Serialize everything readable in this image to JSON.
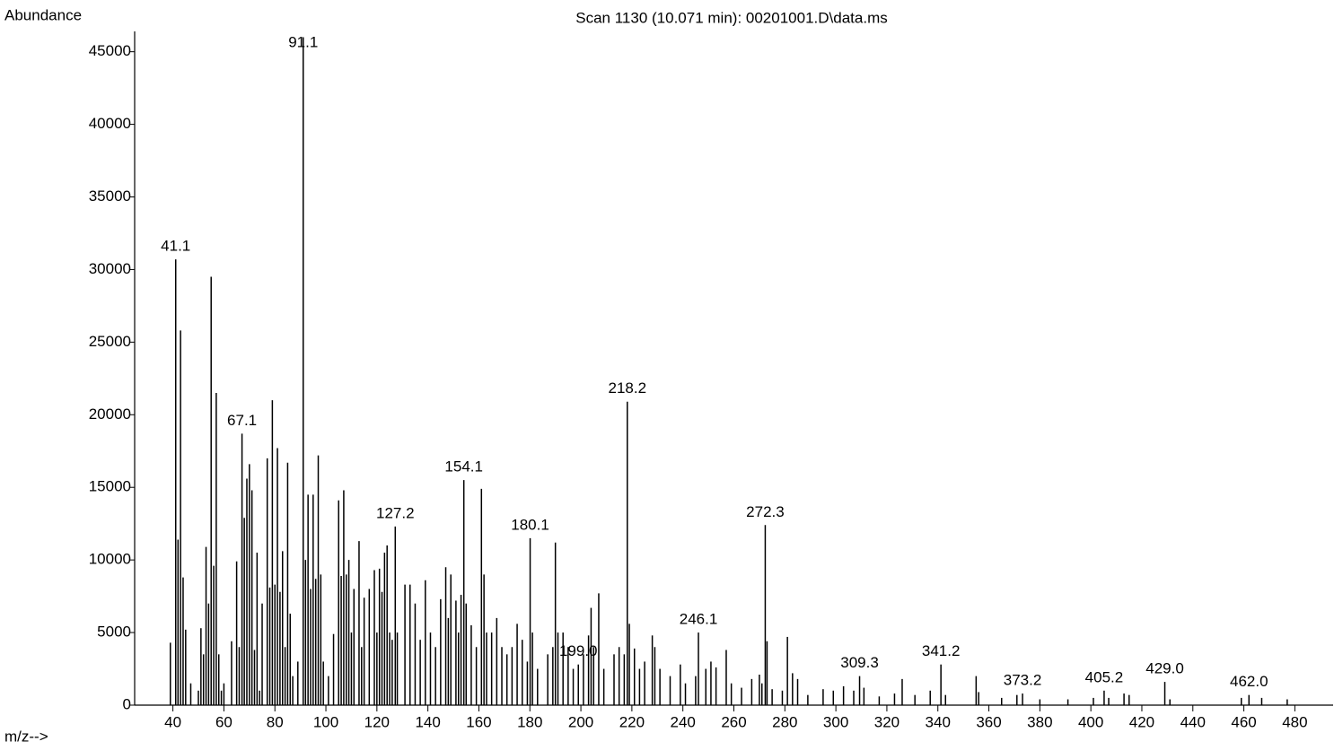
{
  "chart_data": {
    "type": "spectrum",
    "title": "Scan 1130 (10.071 min): 00201001.D\\data.ms",
    "y_label": "Abundance",
    "x_label": "m/z-->",
    "color": "#000000",
    "xlim": [
      25,
      495
    ],
    "ylim": [
      0,
      46400
    ],
    "xticks": [
      40,
      60,
      80,
      100,
      120,
      140,
      160,
      180,
      200,
      220,
      240,
      260,
      280,
      300,
      320,
      340,
      360,
      380,
      400,
      420,
      440,
      460,
      480
    ],
    "yticks": [
      0,
      5000,
      10000,
      15000,
      20000,
      25000,
      30000,
      35000,
      40000,
      45000
    ],
    "peaks": [
      {
        "x": 39,
        "value": 4300
      },
      {
        "x": 41.1,
        "value": 30700,
        "label": "41.1"
      },
      {
        "x": 42,
        "value": 11400
      },
      {
        "x": 43,
        "value": 25800
      },
      {
        "x": 44,
        "value": 8800
      },
      {
        "x": 45,
        "value": 5200
      },
      {
        "x": 47,
        "value": 1500
      },
      {
        "x": 50,
        "value": 1000
      },
      {
        "x": 51,
        "value": 5300
      },
      {
        "x": 52,
        "value": 3500
      },
      {
        "x": 53,
        "value": 10900
      },
      {
        "x": 54,
        "value": 7000
      },
      {
        "x": 55,
        "value": 29500
      },
      {
        "x": 56,
        "value": 9600
      },
      {
        "x": 57,
        "value": 21500
      },
      {
        "x": 58,
        "value": 3500
      },
      {
        "x": 59,
        "value": 1000
      },
      {
        "x": 60,
        "value": 1500
      },
      {
        "x": 63,
        "value": 4400
      },
      {
        "x": 65,
        "value": 9900
      },
      {
        "x": 66,
        "value": 4000
      },
      {
        "x": 67.1,
        "value": 18700,
        "label": "67.1"
      },
      {
        "x": 68,
        "value": 12900
      },
      {
        "x": 69,
        "value": 15600
      },
      {
        "x": 70,
        "value": 16600
      },
      {
        "x": 71,
        "value": 14800
      },
      {
        "x": 72,
        "value": 3800
      },
      {
        "x": 73,
        "value": 10500
      },
      {
        "x": 74,
        "value": 1000
      },
      {
        "x": 75,
        "value": 7000
      },
      {
        "x": 77,
        "value": 17000
      },
      {
        "x": 78,
        "value": 8100
      },
      {
        "x": 79,
        "value": 21000
      },
      {
        "x": 80,
        "value": 8300
      },
      {
        "x": 81,
        "value": 17700
      },
      {
        "x": 82,
        "value": 7800
      },
      {
        "x": 83,
        "value": 10600
      },
      {
        "x": 84,
        "value": 4000
      },
      {
        "x": 85,
        "value": 16700
      },
      {
        "x": 86,
        "value": 6300
      },
      {
        "x": 87,
        "value": 2000
      },
      {
        "x": 89,
        "value": 3000
      },
      {
        "x": 91.1,
        "value": 46000,
        "label": "91.1"
      },
      {
        "x": 92,
        "value": 10000
      },
      {
        "x": 93,
        "value": 14500
      },
      {
        "x": 94,
        "value": 8000
      },
      {
        "x": 95,
        "value": 14500
      },
      {
        "x": 96,
        "value": 8700
      },
      {
        "x": 97,
        "value": 17200
      },
      {
        "x": 98,
        "value": 9000
      },
      {
        "x": 99,
        "value": 3000
      },
      {
        "x": 101,
        "value": 2000
      },
      {
        "x": 103,
        "value": 4900
      },
      {
        "x": 105,
        "value": 14100
      },
      {
        "x": 106,
        "value": 8900
      },
      {
        "x": 107,
        "value": 14800
      },
      {
        "x": 108,
        "value": 9000
      },
      {
        "x": 109,
        "value": 10000
      },
      {
        "x": 110,
        "value": 5000
      },
      {
        "x": 111,
        "value": 8000
      },
      {
        "x": 113,
        "value": 11300
      },
      {
        "x": 114,
        "value": 4000
      },
      {
        "x": 115,
        "value": 7400
      },
      {
        "x": 117,
        "value": 8000
      },
      {
        "x": 119,
        "value": 9300
      },
      {
        "x": 120,
        "value": 5000
      },
      {
        "x": 121,
        "value": 9400
      },
      {
        "x": 122,
        "value": 7800
      },
      {
        "x": 123,
        "value": 10500
      },
      {
        "x": 124,
        "value": 11000
      },
      {
        "x": 125,
        "value": 5000
      },
      {
        "x": 126,
        "value": 4500
      },
      {
        "x": 127.2,
        "value": 12300,
        "label": "127.2"
      },
      {
        "x": 128,
        "value": 5000
      },
      {
        "x": 131,
        "value": 8300
      },
      {
        "x": 133,
        "value": 8300
      },
      {
        "x": 135,
        "value": 7000
      },
      {
        "x": 137,
        "value": 4500
      },
      {
        "x": 139,
        "value": 8600
      },
      {
        "x": 141,
        "value": 5000
      },
      {
        "x": 143,
        "value": 4000
      },
      {
        "x": 145,
        "value": 7300
      },
      {
        "x": 147,
        "value": 9500
      },
      {
        "x": 148,
        "value": 6000
      },
      {
        "x": 149,
        "value": 9000
      },
      {
        "x": 151,
        "value": 7200
      },
      {
        "x": 152,
        "value": 5000
      },
      {
        "x": 153,
        "value": 7600
      },
      {
        "x": 154.1,
        "value": 15500,
        "label": "154.1"
      },
      {
        "x": 155,
        "value": 7000
      },
      {
        "x": 157,
        "value": 5500
      },
      {
        "x": 159,
        "value": 4000
      },
      {
        "x": 161,
        "value": 14900
      },
      {
        "x": 162,
        "value": 9000
      },
      {
        "x": 163,
        "value": 5000
      },
      {
        "x": 165,
        "value": 5000
      },
      {
        "x": 167,
        "value": 6000
      },
      {
        "x": 169,
        "value": 4000
      },
      {
        "x": 171,
        "value": 3500
      },
      {
        "x": 173,
        "value": 4000
      },
      {
        "x": 175,
        "value": 5600
      },
      {
        "x": 177,
        "value": 4500
      },
      {
        "x": 179,
        "value": 3000
      },
      {
        "x": 180.1,
        "value": 11500,
        "label": "180.1"
      },
      {
        "x": 181,
        "value": 5000
      },
      {
        "x": 183,
        "value": 2500
      },
      {
        "x": 187,
        "value": 3500
      },
      {
        "x": 189,
        "value": 4000
      },
      {
        "x": 190,
        "value": 11200
      },
      {
        "x": 191,
        "value": 5000
      },
      {
        "x": 193,
        "value": 5000
      },
      {
        "x": 195,
        "value": 4000
      },
      {
        "x": 197,
        "value": 2500
      },
      {
        "x": 199,
        "value": 2800,
        "label": "199.0"
      },
      {
        "x": 201,
        "value": 3500
      },
      {
        "x": 203,
        "value": 4800
      },
      {
        "x": 204,
        "value": 6700
      },
      {
        "x": 205,
        "value": 4000
      },
      {
        "x": 207,
        "value": 7700
      },
      {
        "x": 209,
        "value": 2500
      },
      {
        "x": 213,
        "value": 3500
      },
      {
        "x": 215,
        "value": 4000
      },
      {
        "x": 217,
        "value": 3500
      },
      {
        "x": 218.2,
        "value": 20900,
        "label": "218.2"
      },
      {
        "x": 219,
        "value": 5600
      },
      {
        "x": 221,
        "value": 3900
      },
      {
        "x": 223,
        "value": 2500
      },
      {
        "x": 225,
        "value": 3000
      },
      {
        "x": 228,
        "value": 4800
      },
      {
        "x": 229,
        "value": 4000
      },
      {
        "x": 231,
        "value": 2500
      },
      {
        "x": 235,
        "value": 2000
      },
      {
        "x": 239,
        "value": 2800
      },
      {
        "x": 241,
        "value": 1500
      },
      {
        "x": 245,
        "value": 2000
      },
      {
        "x": 246.1,
        "value": 5000,
        "label": "246.1"
      },
      {
        "x": 249,
        "value": 2500
      },
      {
        "x": 251,
        "value": 3000
      },
      {
        "x": 253,
        "value": 2600
      },
      {
        "x": 257,
        "value": 3800
      },
      {
        "x": 259,
        "value": 1500
      },
      {
        "x": 263,
        "value": 1200
      },
      {
        "x": 267,
        "value": 1800
      },
      {
        "x": 270,
        "value": 2100
      },
      {
        "x": 271,
        "value": 1500
      },
      {
        "x": 272.3,
        "value": 12400,
        "label": "272.3"
      },
      {
        "x": 273,
        "value": 4400
      },
      {
        "x": 275,
        "value": 1100
      },
      {
        "x": 279,
        "value": 1000
      },
      {
        "x": 281,
        "value": 4700
      },
      {
        "x": 283,
        "value": 2200
      },
      {
        "x": 285,
        "value": 1800
      },
      {
        "x": 289,
        "value": 700
      },
      {
        "x": 295,
        "value": 1100
      },
      {
        "x": 299,
        "value": 1000
      },
      {
        "x": 303,
        "value": 1300
      },
      {
        "x": 307,
        "value": 1000
      },
      {
        "x": 309.3,
        "value": 2000,
        "label": "309.3"
      },
      {
        "x": 311,
        "value": 1200
      },
      {
        "x": 317,
        "value": 600
      },
      {
        "x": 323,
        "value": 800
      },
      {
        "x": 326,
        "value": 1800
      },
      {
        "x": 331,
        "value": 700
      },
      {
        "x": 337,
        "value": 1000
      },
      {
        "x": 341.2,
        "value": 2800,
        "label": "341.2"
      },
      {
        "x": 343,
        "value": 700
      },
      {
        "x": 355,
        "value": 2000
      },
      {
        "x": 356,
        "value": 900
      },
      {
        "x": 365,
        "value": 500
      },
      {
        "x": 371,
        "value": 700
      },
      {
        "x": 373.2,
        "value": 800,
        "label": "373.2"
      },
      {
        "x": 380,
        "value": 400
      },
      {
        "x": 391,
        "value": 400
      },
      {
        "x": 401,
        "value": 500
      },
      {
        "x": 405.2,
        "value": 1000,
        "label": "405.2"
      },
      {
        "x": 407,
        "value": 500
      },
      {
        "x": 413,
        "value": 800
      },
      {
        "x": 415,
        "value": 700
      },
      {
        "x": 429,
        "value": 1600,
        "label": "429.0"
      },
      {
        "x": 431,
        "value": 400
      },
      {
        "x": 459,
        "value": 500
      },
      {
        "x": 462,
        "value": 700,
        "label": "462.0"
      },
      {
        "x": 467,
        "value": 500
      },
      {
        "x": 477,
        "value": 400
      }
    ]
  }
}
